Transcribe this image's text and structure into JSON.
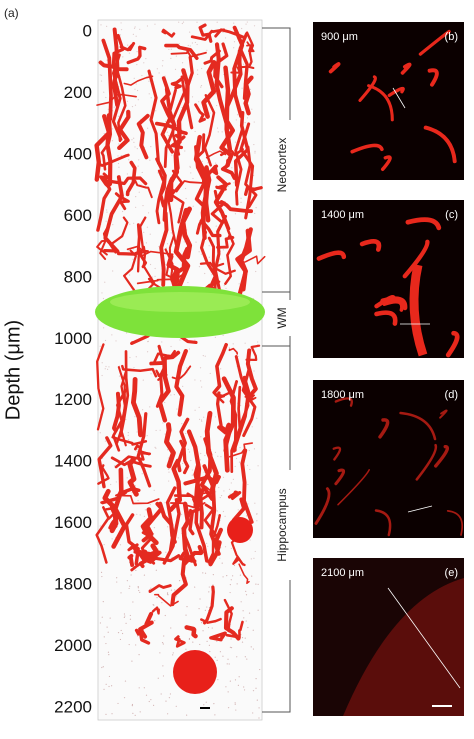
{
  "panel_a": {
    "label": "(a)",
    "axis_label": "Depth (μm)",
    "ticks": [
      0,
      200,
      400,
      600,
      800,
      1000,
      1200,
      1400,
      1600,
      1800,
      2000,
      2200
    ],
    "regions": [
      "Neocortex",
      "WM",
      "Hippocampus"
    ]
  },
  "side_panels": [
    {
      "depth": "900 μm",
      "label": "(b)"
    },
    {
      "depth": "1400 μm",
      "label": "(c)"
    },
    {
      "depth": "1800 μm",
      "label": "(d)"
    },
    {
      "depth": "2100 μm",
      "label": "(e)"
    }
  ]
}
